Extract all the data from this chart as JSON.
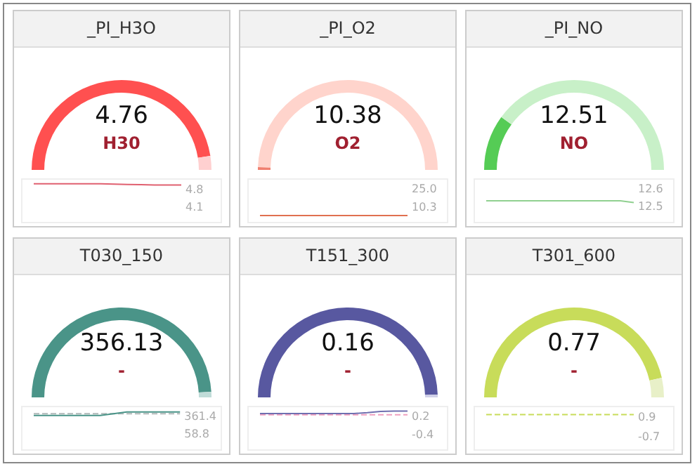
{
  "chart_data": [
    {
      "type": "donut",
      "title": "_PI_H3O",
      "categories": [
        null,
        null
      ],
      "values": [
        95,
        5
      ],
      "colors": [
        "#ff5050",
        "#ffd0d0"
      ],
      "annotations": [
        "4.76",
        "H30"
      ]
    },
    {
      "type": "line",
      "categories": [
        null,
        null,
        null,
        null,
        null,
        null,
        null,
        null,
        null,
        null,
        null,
        null
      ],
      "series": [
        {
          "color": "#e06070",
          "values": [
            5.04,
            5.04,
            5.04,
            5.04,
            5.04,
            5.04,
            5.02,
            5.01,
            5.0,
            4.99,
            4.99,
            4.99
          ]
        }
      ],
      "ylim": [
        3.5,
        5.2
      ],
      "yticks": [
        4.1,
        4.8
      ],
      "grid": false
    },
    {
      "type": "donut",
      "title": "_PI_O2",
      "categories": [
        null,
        null
      ],
      "values": [
        1,
        99
      ],
      "colors": [
        "#f08070",
        "#ffd4cc"
      ],
      "annotations": [
        "10.38",
        "O2"
      ]
    },
    {
      "type": "line",
      "categories": [
        null,
        null,
        null,
        null,
        null,
        null,
        null,
        null,
        null,
        null,
        null,
        null
      ],
      "series": [
        {
          "color": "#e07050",
          "values": [
            4,
            4,
            4,
            4,
            4,
            4,
            4,
            4,
            4,
            4,
            4,
            4
          ]
        }
      ],
      "ylim": [
        -1,
        32
      ],
      "yticks": [
        10.3,
        {
          "value": 25,
          "label": "25.0"
        }
      ],
      "grid": false
    },
    {
      "type": "donut",
      "title": "_PI_NO",
      "categories": [
        null,
        null
      ],
      "values": [
        20,
        80
      ],
      "colors": [
        "#55cc55",
        "#c8f0c8"
      ],
      "annotations": [
        "12.51",
        "NO"
      ]
    },
    {
      "type": "line",
      "categories": [
        null,
        null,
        null,
        null,
        null,
        null,
        null,
        null,
        null,
        null,
        null,
        null
      ],
      "series": [
        {
          "color": "#90d090",
          "values": [
            12.53,
            12.53,
            12.53,
            12.53,
            12.53,
            12.53,
            12.53,
            12.53,
            12.53,
            12.53,
            12.53,
            12.52
          ]
        }
      ],
      "ylim": [
        12.41,
        12.65
      ],
      "yticks": [
        12.5,
        12.6
      ],
      "grid": false
    },
    {
      "type": "donut",
      "title": "T030_150",
      "categories": [
        null,
        null
      ],
      "values": [
        98,
        2
      ],
      "colors": [
        "#4a9488",
        "#c0dcd8"
      ],
      "annotations": [
        "356.13",
        "-"
      ]
    },
    {
      "type": "line",
      "categories": [
        null,
        null,
        null,
        null,
        null,
        null,
        null,
        null,
        null,
        null,
        null,
        null
      ],
      "series": [
        {
          "color": "#b0b8b8",
          "values": [
            410,
            410,
            410,
            410,
            410,
            410,
            410,
            410,
            410,
            410,
            410,
            410
          ],
          "line_style": "dashed"
        },
        {
          "color": "#4a9488",
          "values": [
            380,
            380,
            380,
            380,
            380,
            380,
            410,
            440,
            440,
            440,
            440,
            440
          ]
        }
      ],
      "ylim": [
        -200,
        520
      ],
      "yticks": [
        58.8,
        361.4
      ],
      "grid": false
    },
    {
      "type": "donut",
      "title": "T151_300",
      "categories": [
        null,
        null
      ],
      "values": [
        99,
        1
      ],
      "colors": [
        "#5858a0",
        "#d0d0e8"
      ],
      "annotations": [
        "0.16",
        "-"
      ]
    },
    {
      "type": "line",
      "categories": [
        null,
        null,
        null,
        null,
        null,
        null,
        null,
        null,
        null,
        null,
        null,
        null
      ],
      "series": [
        {
          "color": "#f0a0c0",
          "values": [
            0.25,
            0.25,
            0.25,
            0.25,
            0.25,
            0.25,
            0.25,
            0.25,
            0.25,
            0.25,
            0.25,
            0.25
          ],
          "line_style": "dashed"
        },
        {
          "color": "#7070b0",
          "values": [
            0.29,
            0.29,
            0.29,
            0.29,
            0.29,
            0.29,
            0.29,
            0.29,
            0.32,
            0.36,
            0.37,
            0.37
          ]
        }
      ],
      "ylim": [
        -0.9,
        0.5
      ],
      "yticks": [
        -0.4,
        0.2
      ],
      "grid": false
    },
    {
      "type": "donut",
      "title": "T301_600",
      "categories": [
        null,
        null
      ],
      "values": [
        93,
        7
      ],
      "colors": [
        "#c8dc5a",
        "#e8f0c8"
      ],
      "annotations": [
        "0.77",
        "-"
      ]
    },
    {
      "type": "line",
      "categories": [
        null,
        null,
        null,
        null,
        null,
        null,
        null,
        null,
        null,
        null,
        null,
        null
      ],
      "series": [
        {
          "color": "#c8dc5a",
          "values": [
            1.1,
            1.1,
            1.1,
            1.1,
            1.1,
            1.1,
            1.1,
            1.1,
            1.1,
            1.1,
            1.1,
            1.1
          ],
          "line_style": "dashed"
        }
      ],
      "ylim": [
        -1.7,
        1.7
      ],
      "yticks": [
        -0.7,
        0.9
      ],
      "grid": false
    }
  ]
}
